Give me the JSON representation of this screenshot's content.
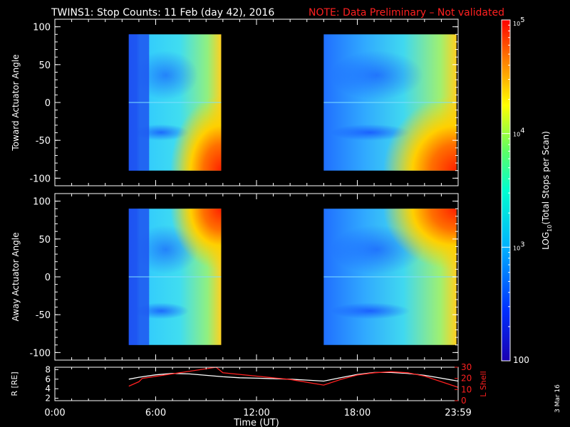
{
  "title": {
    "main": "TWINS1: Stop Counts: 11 Feb (day  42), 2016",
    "note": "NOTE: Data Preliminary – Not validated",
    "note_color": "#ff2020"
  },
  "side_date": "3 Mar 16",
  "chart_data": [
    {
      "type": "heatmap",
      "ylabel": "Toward Actuator Angle",
      "ylim": [
        -110,
        110
      ],
      "yticks": [
        100,
        50,
        0,
        -50,
        -100
      ],
      "xlim": [
        0,
        24
      ],
      "data_blocks": [
        {
          "x": [
            4.4,
            9.9
          ],
          "y": [
            -90,
            90
          ]
        },
        {
          "x": [
            16.0,
            23.9
          ],
          "y": [
            -90,
            90
          ]
        }
      ]
    },
    {
      "type": "heatmap",
      "ylabel": "Away Actuator Angle",
      "ylim": [
        -110,
        110
      ],
      "yticks": [
        100,
        50,
        0,
        -50,
        -100
      ],
      "xlim": [
        0,
        24
      ],
      "data_blocks": [
        {
          "x": [
            4.4,
            9.9
          ],
          "y": [
            -90,
            90
          ]
        },
        {
          "x": [
            16.0,
            23.9
          ],
          "y": [
            -90,
            90
          ]
        }
      ]
    },
    {
      "type": "line",
      "ylabel_left": "R [RE]",
      "ylabel_right": "L Shell",
      "ylim_left": [
        1.5,
        8.5
      ],
      "yticks_left": [
        8,
        6,
        4,
        2
      ],
      "ylim_right": [
        0,
        30
      ],
      "yticks_right": [
        30,
        20,
        10,
        0
      ],
      "xlabel": "Time (UT)",
      "xticks": [
        "0:00",
        "6:00",
        "12:00",
        "18:00",
        "23:59"
      ],
      "xlim": [
        0,
        24
      ],
      "series": [
        {
          "color": "#ffffff",
          "x": [
            4.4,
            5,
            6,
            7,
            8,
            9,
            10,
            11,
            12,
            13,
            14,
            15,
            16,
            17,
            18,
            19,
            20,
            21,
            22,
            23,
            24
          ],
          "y": [
            6.0,
            6.4,
            6.9,
            7.2,
            7.1,
            6.8,
            6.5,
            6.3,
            6.2,
            6.1,
            6.0,
            5.8,
            5.6,
            6.3,
            7.0,
            7.4,
            7.4,
            7.2,
            6.8,
            6.2,
            5.6
          ]
        },
        {
          "color": "#ff2020",
          "x": [
            4.4,
            5,
            5.2,
            9.6,
            10,
            12,
            14,
            16,
            17,
            18,
            19,
            20,
            21,
            22,
            23,
            24
          ],
          "y": [
            13,
            17,
            20,
            30,
            25,
            22,
            19,
            14,
            19,
            23,
            25,
            26,
            25,
            22,
            17,
            12
          ]
        }
      ]
    },
    {
      "type": "colorbar",
      "label": "LOG10(Total Stops per Scan)",
      "label_prefix": "LOG",
      "label_sub": "10",
      "label_suffix": "(Total Stops per Scan)",
      "ticks": [
        {
          "value": 100,
          "label": "100"
        },
        {
          "value": 1000,
          "base": "10",
          "exp": "3"
        },
        {
          "value": 10000,
          "base": "10",
          "exp": "4"
        },
        {
          "value": 100000,
          "base": "10",
          "exp": "5"
        }
      ],
      "range": [
        100,
        100000
      ]
    }
  ]
}
